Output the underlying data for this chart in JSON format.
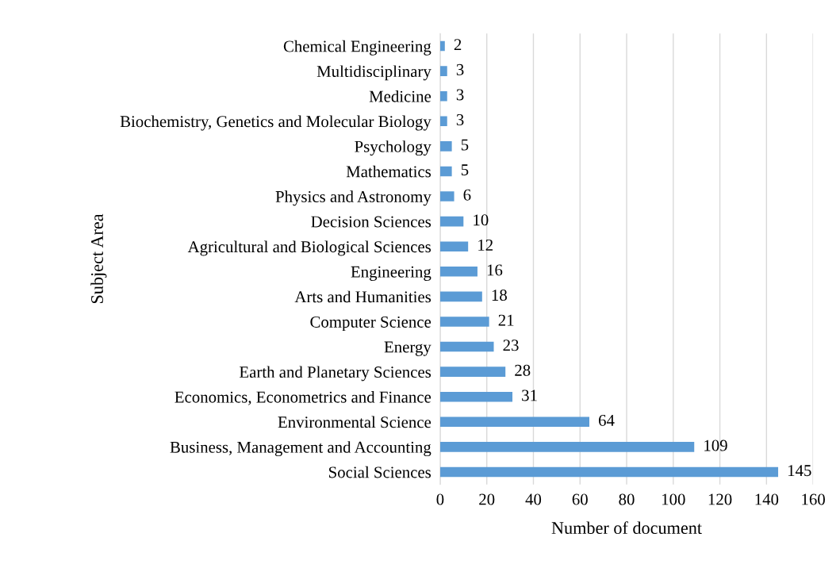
{
  "chart_data": {
    "type": "bar",
    "orientation": "horizontal",
    "xlabel": "Number of document",
    "ylabel": "Subject Area",
    "categories": [
      "Chemical Engineering",
      "Multidisciplinary",
      "Medicine",
      "Biochemistry, Genetics and Molecular Biology",
      "Psychology",
      "Mathematics",
      "Physics and Astronomy",
      "Decision Sciences",
      "Agricultural and Biological Sciences",
      "Engineering",
      "Arts and Humanities",
      "Computer Science",
      "Energy",
      "Earth and Planetary Sciences",
      "Economics, Econometrics and Finance",
      "Environmental Science",
      "Business, Management and Accounting",
      "Social Sciences"
    ],
    "values": [
      2,
      3,
      3,
      3,
      5,
      5,
      6,
      10,
      12,
      16,
      18,
      21,
      23,
      28,
      31,
      64,
      109,
      145
    ],
    "color": "#5b9bd5",
    "data_labels": true,
    "xlim": [
      0,
      160
    ],
    "xticks": [
      0,
      20,
      40,
      60,
      80,
      100,
      120,
      140,
      160
    ],
    "grid": "x"
  }
}
